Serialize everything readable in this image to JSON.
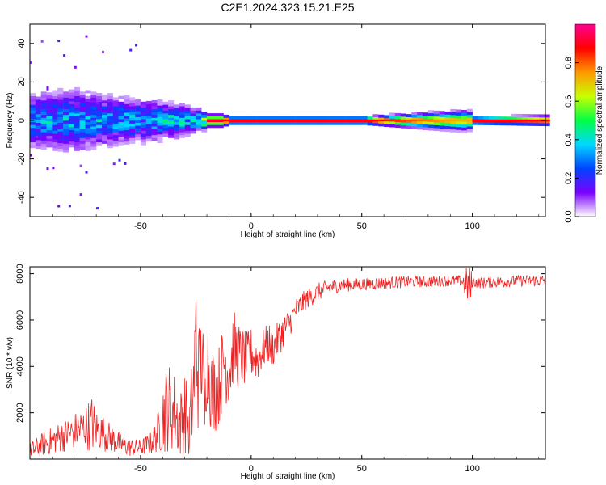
{
  "figure": {
    "title": "C2E1.2024.323.15.21.E25"
  },
  "chart_data": [
    {
      "type": "heatmap",
      "title": "C2E1.2024.323.15.21.E25",
      "xlabel": "Height of straight line (km)",
      "ylabel": "Frequency (Hz)",
      "xlim": [
        -100,
        133
      ],
      "ylim": [
        -50,
        50
      ],
      "xticks": [
        -50,
        0,
        50,
        100
      ],
      "yticks": [
        -40,
        -20,
        0,
        20,
        40
      ],
      "colorbar": {
        "label": "Normalized spectral amplitude",
        "range": [
          0,
          1
        ],
        "ticks": [
          "0.0",
          "0.2",
          "0.4",
          "0.6",
          "0.8"
        ],
        "colors": [
          "#ffffff",
          "#7a00ff",
          "#0044ff",
          "#00d8ff",
          "#00ff44",
          "#c8ff00",
          "#ff9900",
          "#ff0000",
          "#ff0090"
        ]
      },
      "band": {
        "x": [
          -100,
          -80,
          -60,
          -40,
          -30,
          -25,
          -20,
          -15,
          -10,
          0,
          50,
          97,
          100,
          133
        ],
        "half_width_hz": [
          7,
          8,
          6,
          5,
          4,
          3,
          1.5,
          1.5,
          1,
          1,
          1,
          2.5,
          1,
          1.2
        ],
        "peak_amplitude": [
          0.3,
          0.32,
          0.3,
          0.35,
          0.35,
          0.4,
          0.9,
          0.9,
          0.9,
          0.9,
          0.9,
          0.7,
          0.9,
          0.9
        ]
      }
    },
    {
      "type": "line",
      "xlabel": "Height of straight line (km)",
      "ylabel": "SNR (10 * v/v)",
      "xlim": [
        -100,
        133
      ],
      "ylim": [
        0,
        8300
      ],
      "xticks": [
        -50,
        0,
        50,
        100
      ],
      "yticks": [
        2000,
        4000,
        6000,
        8000
      ],
      "series": [
        {
          "color": "#ee2222",
          "x": [
            -100,
            -95,
            -90,
            -85,
            -80,
            -75,
            -72,
            -70,
            -65,
            -60,
            -55,
            -50,
            -45,
            -42,
            -40,
            -38,
            -35,
            -32,
            -30,
            -28,
            -26,
            -25,
            -24,
            -22,
            -21,
            -20,
            -18,
            -15,
            -12,
            -10,
            -8,
            -5,
            -2,
            0,
            3,
            5,
            8,
            10,
            13,
            15,
            18,
            20,
            25,
            30,
            35,
            40,
            50,
            60,
            70,
            80,
            90,
            95,
            98,
            99,
            100,
            105,
            110,
            115,
            120,
            125,
            130,
            133
          ],
          "y": [
            300,
            600,
            800,
            1000,
            1200,
            1400,
            1500,
            1300,
            1000,
            700,
            500,
            500,
            700,
            1200,
            1800,
            2300,
            2100,
            1500,
            2100,
            1300,
            3000,
            5500,
            3500,
            4500,
            1800,
            4700,
            3000,
            3000,
            4300,
            3700,
            4800,
            4400,
            4300,
            4600,
            4300,
            4700,
            5000,
            4800,
            5300,
            5600,
            6000,
            6400,
            6900,
            7200,
            7400,
            7500,
            7550,
            7600,
            7650,
            7650,
            7700,
            7700,
            7500,
            7300,
            7650,
            7600,
            7650,
            7650,
            7700,
            7700,
            7700,
            7700
          ],
          "noise": [
            400,
            500,
            600,
            700,
            800,
            900,
            1300,
            900,
            700,
            500,
            400,
            350,
            500,
            900,
            1600,
            2000,
            1800,
            1500,
            1800,
            1500,
            2400,
            2500,
            2300,
            2100,
            1500,
            2300,
            1900,
            1800,
            1800,
            1600,
            1700,
            1400,
            1200,
            1100,
            1000,
            900,
            900,
            800,
            800,
            700,
            600,
            550,
            450,
            400,
            350,
            300,
            280,
            270,
            260,
            250,
            240,
            240,
            900,
            1200,
            240,
            250,
            250,
            250,
            250,
            250,
            250,
            250
          ]
        }
      ]
    }
  ]
}
